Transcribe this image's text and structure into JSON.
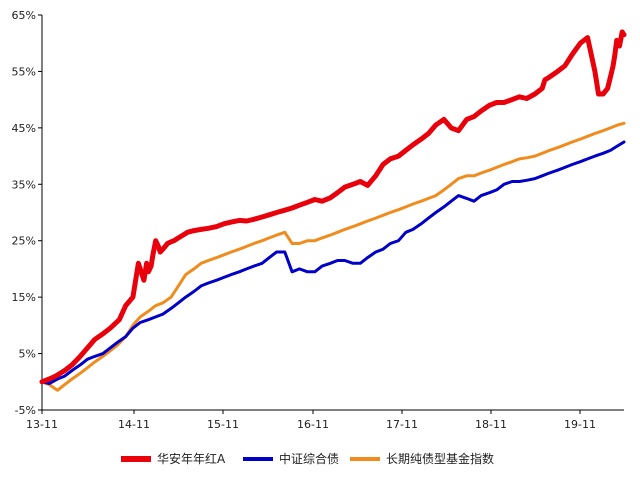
{
  "chart_data": {
    "type": "line",
    "title": "",
    "xlabel": "",
    "ylabel": "",
    "x_tick_labels": [
      "13-11",
      "14-11",
      "15-11",
      "16-11",
      "17-11",
      "18-11",
      "19-11"
    ],
    "y_tick_labels": [
      "-5%",
      "5%",
      "15%",
      "25%",
      "35%",
      "45%",
      "55%",
      "65%"
    ],
    "ylim": [
      -5,
      65
    ],
    "grid": false,
    "legend_position": "bottom",
    "series": [
      {
        "name": "华安年年红A",
        "color": "#e8000b",
        "x": [
          0,
          0.08,
          0.15,
          0.25,
          0.33,
          0.42,
          0.5,
          0.58,
          0.67,
          0.75,
          0.85,
          0.92,
          1.0,
          1.06,
          1.12,
          1.15,
          1.17,
          1.2,
          1.22,
          1.25,
          1.28,
          1.3,
          1.33,
          1.38,
          1.42,
          1.45,
          1.5,
          1.55,
          1.6,
          1.67,
          1.75,
          1.83,
          1.92,
          2.0,
          2.08,
          2.17,
          2.25,
          2.33,
          2.42,
          2.5,
          2.58,
          2.67,
          2.75,
          2.83,
          2.92,
          3.0,
          3.08,
          3.17,
          3.25,
          3.33,
          3.42,
          3.5,
          3.58,
          3.67,
          3.75,
          3.83,
          3.92,
          4.0,
          4.08,
          4.17,
          4.25,
          4.33,
          4.42,
          4.5,
          4.58,
          4.67,
          4.75,
          4.83,
          4.92,
          5.0,
          5.08,
          5.17,
          5.25,
          5.33,
          5.42,
          5.5,
          5.53,
          5.58,
          5.67,
          5.75,
          5.83,
          5.92,
          6.0,
          6.08,
          6.12,
          6.17,
          6.22,
          6.25,
          6.28,
          6.3,
          6.32,
          6.35,
          6.38,
          6.4
        ],
        "values": [
          0.0,
          0.5,
          1.0,
          2.0,
          3.0,
          4.5,
          6.0,
          7.5,
          8.5,
          9.5,
          11.0,
          13.5,
          15.0,
          21.0,
          18.0,
          21.0,
          19.5,
          20.5,
          22.5,
          25.0,
          24.0,
          23.0,
          23.5,
          24.5,
          24.8,
          25.0,
          25.5,
          26.0,
          26.5,
          26.8,
          27.0,
          27.2,
          27.5,
          28.0,
          28.3,
          28.6,
          28.5,
          28.8,
          29.2,
          29.6,
          30.0,
          30.4,
          30.8,
          31.3,
          31.8,
          32.3,
          32.0,
          32.6,
          33.5,
          34.5,
          35.0,
          35.5,
          34.8,
          36.5,
          38.5,
          39.5,
          40.0,
          41.0,
          42.0,
          43.0,
          44.0,
          45.5,
          46.5,
          45.0,
          44.5,
          46.5,
          47.0,
          48.0,
          49.0,
          49.5,
          49.5,
          50.0,
          50.5,
          50.2,
          51.0,
          52.0,
          53.5,
          54.0,
          55.0,
          56.0,
          58.0,
          60.0,
          61.0,
          55.0,
          51.0,
          51.0,
          52.0,
          54.0,
          56.0,
          58.0,
          60.5,
          59.5,
          62.0,
          61.5
        ]
      },
      {
        "name": "中证综合债",
        "color": "#0000c8",
        "x": [
          0,
          0.08,
          0.17,
          0.25,
          0.33,
          0.42,
          0.5,
          0.58,
          0.67,
          0.75,
          0.83,
          0.92,
          1.0,
          1.08,
          1.17,
          1.25,
          1.33,
          1.42,
          1.5,
          1.58,
          1.67,
          1.75,
          1.83,
          1.92,
          2.0,
          2.08,
          2.17,
          2.25,
          2.33,
          2.42,
          2.5,
          2.58,
          2.67,
          2.75,
          2.83,
          2.92,
          3.0,
          3.08,
          3.17,
          3.25,
          3.33,
          3.42,
          3.5,
          3.58,
          3.67,
          3.75,
          3.83,
          3.92,
          4.0,
          4.08,
          4.17,
          4.25,
          4.33,
          4.42,
          4.5,
          4.58,
          4.67,
          4.75,
          4.83,
          4.92,
          5.0,
          5.08,
          5.17,
          5.25,
          5.33,
          5.42,
          5.5,
          5.58,
          5.67,
          5.75,
          5.83,
          5.92,
          6.0,
          6.08,
          6.17,
          6.25,
          6.33,
          6.4
        ],
        "values": [
          0.0,
          -0.3,
          0.5,
          1.0,
          2.0,
          3.0,
          4.0,
          4.5,
          5.0,
          6.0,
          7.0,
          8.0,
          9.5,
          10.5,
          11.0,
          11.5,
          12.0,
          13.0,
          14.0,
          15.0,
          16.0,
          17.0,
          17.5,
          18.0,
          18.5,
          19.0,
          19.5,
          20.0,
          20.5,
          21.0,
          22.0,
          23.0,
          23.0,
          19.5,
          20.0,
          19.5,
          19.5,
          20.5,
          21.0,
          21.5,
          21.5,
          21.0,
          21.0,
          22.0,
          23.0,
          23.5,
          24.5,
          25.0,
          26.5,
          27.0,
          28.0,
          29.0,
          30.0,
          31.0,
          32.0,
          33.0,
          32.5,
          32.0,
          33.0,
          33.5,
          34.0,
          35.0,
          35.5,
          35.5,
          35.7,
          36.0,
          36.5,
          37.0,
          37.5,
          38.0,
          38.5,
          39.0,
          39.5,
          40.0,
          40.5,
          41.0,
          41.8,
          42.5
        ]
      },
      {
        "name": "长期纯债型基金指数",
        "color": "#f08c1e",
        "x": [
          0,
          0.08,
          0.17,
          0.25,
          0.33,
          0.42,
          0.5,
          0.58,
          0.67,
          0.75,
          0.83,
          0.92,
          1.0,
          1.08,
          1.17,
          1.25,
          1.33,
          1.42,
          1.5,
          1.58,
          1.67,
          1.75,
          1.83,
          1.92,
          2.0,
          2.08,
          2.17,
          2.25,
          2.33,
          2.42,
          2.5,
          2.58,
          2.67,
          2.75,
          2.83,
          2.92,
          3.0,
          3.08,
          3.17,
          3.25,
          3.33,
          3.42,
          3.5,
          3.58,
          3.67,
          3.75,
          3.83,
          3.92,
          4.0,
          4.08,
          4.17,
          4.25,
          4.33,
          4.42,
          4.5,
          4.58,
          4.67,
          4.75,
          4.83,
          4.92,
          5.0,
          5.08,
          5.17,
          5.25,
          5.33,
          5.42,
          5.5,
          5.58,
          5.67,
          5.75,
          5.83,
          5.92,
          6.0,
          6.08,
          6.17,
          6.25,
          6.33,
          6.4
        ],
        "values": [
          0.0,
          -0.5,
          -1.5,
          -0.5,
          0.5,
          1.5,
          2.5,
          3.5,
          4.5,
          5.5,
          6.5,
          8.0,
          10.0,
          11.5,
          12.5,
          13.5,
          14.0,
          15.0,
          17.0,
          19.0,
          20.0,
          21.0,
          21.5,
          22.0,
          22.5,
          23.0,
          23.5,
          24.0,
          24.5,
          25.0,
          25.5,
          26.0,
          26.5,
          24.5,
          24.5,
          25.0,
          25.0,
          25.5,
          26.0,
          26.5,
          27.0,
          27.5,
          28.0,
          28.5,
          29.0,
          29.5,
          30.0,
          30.5,
          31.0,
          31.5,
          32.0,
          32.5,
          33.0,
          34.0,
          35.0,
          36.0,
          36.5,
          36.5,
          37.0,
          37.5,
          38.0,
          38.5,
          39.0,
          39.5,
          39.7,
          40.0,
          40.5,
          41.0,
          41.5,
          42.0,
          42.5,
          43.0,
          43.5,
          44.0,
          44.5,
          45.0,
          45.5,
          45.8
        ]
      }
    ]
  }
}
